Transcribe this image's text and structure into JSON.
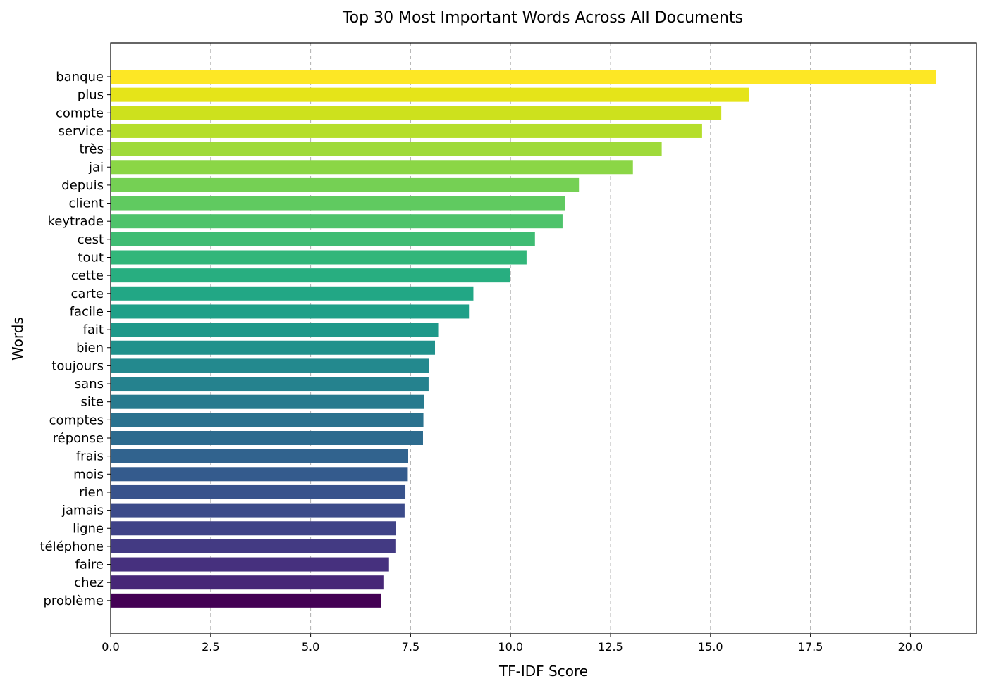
{
  "chart_data": {
    "type": "bar",
    "orientation": "horizontal",
    "title": "Top 30 Most Important Words Across All Documents",
    "xlabel": "TF-IDF Score",
    "ylabel": "Words",
    "xlim": [
      0,
      21.65
    ],
    "xticks": [
      "0.0",
      "2.5",
      "5.0",
      "7.5",
      "10.0",
      "12.5",
      "15.0",
      "17.5",
      "20.0"
    ],
    "grid": "x-axis dashed",
    "colormap": "viridis",
    "categories": [
      "banque",
      "plus",
      "compte",
      "service",
      "très",
      "jai",
      "depuis",
      "client",
      "keytrade",
      "cest",
      "tout",
      "cette",
      "carte",
      "facile",
      "fait",
      "bien",
      "toujours",
      "sans",
      "site",
      "comptes",
      "réponse",
      "frais",
      "mois",
      "rien",
      "jamais",
      "ligne",
      "téléphone",
      "faire",
      "chez",
      "problème"
    ],
    "values": [
      20.63,
      15.96,
      15.27,
      14.79,
      13.78,
      13.06,
      11.71,
      11.37,
      11.3,
      10.61,
      10.4,
      9.98,
      9.07,
      8.96,
      8.19,
      8.11,
      7.96,
      7.95,
      7.84,
      7.82,
      7.81,
      7.44,
      7.43,
      7.37,
      7.35,
      7.13,
      7.12,
      6.96,
      6.82,
      6.77
    ],
    "colors": [
      "#fde725",
      "#e5e419",
      "#cde11d",
      "#b5de2b",
      "#9fda3a",
      "#8bd646",
      "#75d054",
      "#60ca60",
      "#4ec36b",
      "#3fbc73",
      "#32b67a",
      "#28ae80",
      "#22a785",
      "#1fa088",
      "#1f998a",
      "#21918c",
      "#23898e",
      "#25828e",
      "#277a8e",
      "#2a728e",
      "#2d6b8e",
      "#31638e",
      "#345b8d",
      "#38538c",
      "#3c4b8a",
      "#404387",
      "#433a83",
      "#46307e",
      "#472777",
      "#440154"
    ]
  }
}
